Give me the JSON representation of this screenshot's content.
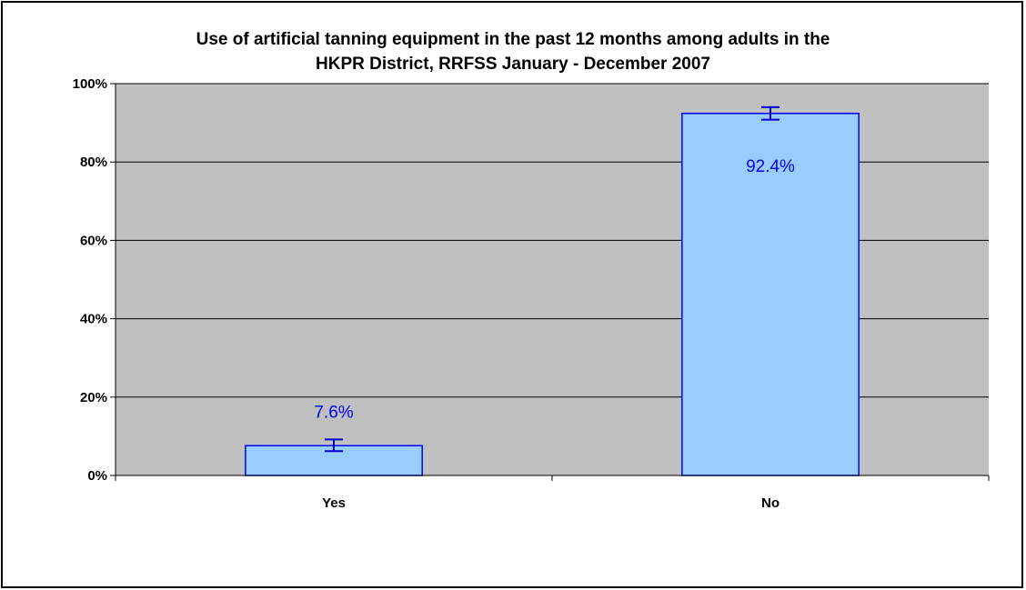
{
  "chart_data": {
    "type": "bar",
    "title_lines": [
      "Use of artificial tanning equipment in the past 12 months among adults in the",
      "HKPR District, RRFSS January - December 2007"
    ],
    "categories": [
      "Yes",
      "No"
    ],
    "values": [
      7.6,
      92.4
    ],
    "error_bars": [
      [
        6.2,
        9.2
      ],
      [
        90.8,
        94.0
      ]
    ],
    "data_labels": [
      "7.6%",
      "92.4%"
    ],
    "ylim": [
      0,
      100
    ],
    "yticks": [
      0,
      20,
      40,
      60,
      80,
      100
    ],
    "ytick_labels": [
      "0%",
      "20%",
      "40%",
      "60%",
      "80%",
      "100%"
    ],
    "xlabel": "",
    "ylabel": "",
    "grid": true,
    "legend": "none",
    "colors": {
      "plot_background": "#c0c0c0",
      "bar_fill": "#99ccff",
      "bar_stroke": "#0000ff",
      "error_bar": "#0000cc",
      "data_label": "#0000ee",
      "gridline": "#000000"
    }
  }
}
